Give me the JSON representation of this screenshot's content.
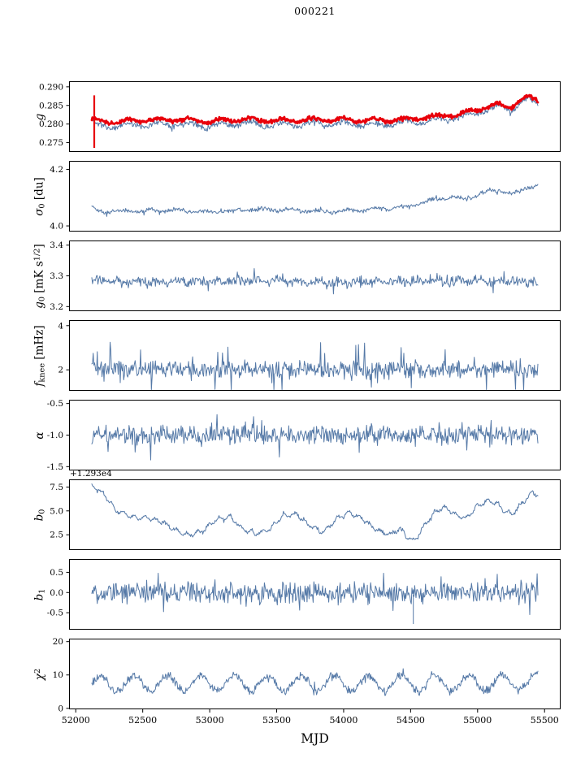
{
  "chart_data": {
    "type": "line",
    "title": "000221",
    "xlabel": "MJD",
    "xlim": [
      51950,
      55620
    ],
    "x_data_range": [
      52120,
      55450
    ],
    "x_ticks": [
      {
        "value": 52000,
        "label": "52000"
      },
      {
        "value": 52500,
        "label": "52500"
      },
      {
        "value": 53000,
        "label": "53000"
      },
      {
        "value": 53500,
        "label": "53500"
      },
      {
        "value": 54000,
        "label": "54000"
      },
      {
        "value": 54500,
        "label": "54500"
      },
      {
        "value": 55000,
        "label": "55000"
      },
      {
        "value": 55500,
        "label": "55500"
      }
    ],
    "colors": {
      "line": "#5579A7",
      "highlight": "#E8000B",
      "axis": "#000000"
    },
    "panels": [
      {
        "id": "g",
        "ylabel_text": "g",
        "ylabel_parts": [
          {
            "t": "g",
            "s": "it"
          }
        ],
        "ylim": [
          0.2725,
          0.2915
        ],
        "yticks": [
          {
            "value": 0.275,
            "label": "0.275"
          },
          {
            "value": 0.28,
            "label": "0.280"
          },
          {
            "value": 0.285,
            "label": "0.285"
          },
          {
            "value": 0.29,
            "label": "0.290"
          }
        ],
        "series": [
          {
            "name": "g-blue",
            "color": "#5579A7",
            "width": 1,
            "seed": 11,
            "n": 680,
            "noise": 0.0005,
            "spike_noise": {
              "prob": 0.05,
              "amp": 0.0011
            },
            "sine": {
              "amp": 0.0006,
              "period": 230,
              "phase": 0.5
            },
            "keypoints": [
              [
                52120,
                0.2812
              ],
              [
                52160,
                0.2795
              ],
              [
                52250,
                0.2794
              ],
              [
                52500,
                0.2799
              ],
              [
                52750,
                0.2801
              ],
              [
                53000,
                0.2795
              ],
              [
                53250,
                0.2802
              ],
              [
                53500,
                0.2797
              ],
              [
                53750,
                0.28
              ],
              [
                54000,
                0.2801
              ],
              [
                54250,
                0.2797
              ],
              [
                54500,
                0.2804
              ],
              [
                54700,
                0.281
              ],
              [
                54900,
                0.282
              ],
              [
                55050,
                0.2836
              ],
              [
                55150,
                0.2845
              ],
              [
                55250,
                0.284
              ],
              [
                55330,
                0.2858
              ],
              [
                55380,
                0.2866
              ],
              [
                55450,
                0.2852
              ]
            ]
          },
          {
            "name": "g-red",
            "color": "#E8000B",
            "width": 2.8,
            "seed": 12,
            "n": 680,
            "noise": 0.00035,
            "spike_noise": {
              "prob": 0.03,
              "amp": 0.0006
            },
            "sine": {
              "amp": 0.0005,
              "period": 230,
              "phase": 0.5
            },
            "keypoints": [
              [
                52120,
                0.2812
              ],
              [
                52250,
                0.2806
              ],
              [
                52500,
                0.281
              ],
              [
                52750,
                0.2812
              ],
              [
                53000,
                0.2807
              ],
              [
                53250,
                0.2813
              ],
              [
                53500,
                0.2809
              ],
              [
                53750,
                0.2811
              ],
              [
                54000,
                0.2812
              ],
              [
                54250,
                0.2809
              ],
              [
                54500,
                0.2815
              ],
              [
                54700,
                0.282
              ],
              [
                54900,
                0.2829
              ],
              [
                55050,
                0.2845
              ],
              [
                55150,
                0.2852
              ],
              [
                55250,
                0.2848
              ],
              [
                55330,
                0.2866
              ],
              [
                55380,
                0.2872
              ],
              [
                55450,
                0.2862
              ]
            ]
          }
        ],
        "segments": [
          {
            "x": 52138,
            "y0": 0.2736,
            "y1": 0.2877,
            "color": "#E8000B",
            "width": 2.2
          }
        ]
      },
      {
        "id": "sigma0",
        "ylabel_text": "sigma_0 [du]",
        "ylabel_parts": [
          {
            "t": "σ",
            "s": "it"
          },
          {
            "t": "0",
            "s": "sub"
          },
          {
            "t": " [du]",
            "s": "u"
          }
        ],
        "ylim": [
          3.98,
          4.23
        ],
        "yticks": [
          {
            "value": 4.0,
            "label": "4.0"
          },
          {
            "value": 4.2,
            "label": "4.2"
          }
        ],
        "series": [
          {
            "name": "sigma0-line",
            "color": "#5579A7",
            "width": 1,
            "seed": 21,
            "n": 660,
            "noise": 0.005,
            "spike_noise": {
              "prob": 0.05,
              "amp": 0.012
            },
            "sine": {
              "amp": 0.004,
              "period": 210,
              "phase": 1.2
            },
            "keypoints": [
              [
                52120,
                4.068
              ],
              [
                52160,
                4.052
              ],
              [
                52400,
                4.051
              ],
              [
                52700,
                4.057
              ],
              [
                53000,
                4.049
              ],
              [
                53300,
                4.058
              ],
              [
                53600,
                4.056
              ],
              [
                53900,
                4.05
              ],
              [
                54200,
                4.058
              ],
              [
                54450,
                4.066
              ],
              [
                54600,
                4.085
              ],
              [
                54750,
                4.1
              ],
              [
                54900,
                4.096
              ],
              [
                55050,
                4.118
              ],
              [
                55150,
                4.127
              ],
              [
                55250,
                4.113
              ],
              [
                55350,
                4.13
              ],
              [
                55450,
                4.148
              ]
            ]
          }
        ],
        "segments": []
      },
      {
        "id": "g0",
        "ylabel_text": "g_0 [mK s^1/2]",
        "ylabel_parts": [
          {
            "t": "g",
            "s": "it"
          },
          {
            "t": "0",
            "s": "sub"
          },
          {
            "t": " [mK s",
            "s": "u"
          },
          {
            "t": "1/2",
            "s": "sup"
          },
          {
            "t": "]",
            "s": "u"
          }
        ],
        "ylim": [
          3.185,
          3.415
        ],
        "yticks": [
          {
            "value": 3.2,
            "label": "3.2"
          },
          {
            "value": 3.3,
            "label": "3.3"
          },
          {
            "value": 3.4,
            "label": "3.4"
          }
        ],
        "series": [
          {
            "name": "g0-line",
            "color": "#5579A7",
            "width": 1,
            "seed": 31,
            "n": 660,
            "noise": 0.011,
            "spike_noise": {
              "prob": 0.06,
              "amp": 0.028
            },
            "sine": {
              "amp": 0.005,
              "period": 150,
              "phase": 0
            },
            "keypoints": [
              [
                52120,
                3.284
              ],
              [
                52700,
                3.281
              ],
              [
                53400,
                3.283
              ],
              [
                54000,
                3.279
              ],
              [
                54700,
                3.282
              ],
              [
                55450,
                3.281
              ]
            ]
          }
        ],
        "segments": []
      },
      {
        "id": "fknee",
        "ylabel_text": "f_knee [mHz]",
        "ylabel_parts": [
          {
            "t": "f",
            "s": "it"
          },
          {
            "t": "knee",
            "s": "sub"
          },
          {
            "t": " [mHz]",
            "s": "u"
          }
        ],
        "ylim": [
          1.05,
          4.25
        ],
        "yticks": [
          {
            "value": 2,
            "label": "2"
          },
          {
            "value": 4,
            "label": "4"
          }
        ],
        "series": [
          {
            "name": "fknee-line",
            "color": "#5579A7",
            "width": 1,
            "seed": 41,
            "n": 660,
            "noise": 0.26,
            "spike_noise": {
              "prob": 0.1,
              "amp": 1.1
            },
            "sine": {
              "amp": 0.06,
              "period": 140,
              "phase": 0
            },
            "keypoints": [
              [
                52120,
                2.1
              ],
              [
                52400,
                2.05
              ],
              [
                53000,
                2.0
              ],
              [
                54000,
                2.02
              ],
              [
                55000,
                2.0
              ],
              [
                55450,
                2.0
              ]
            ]
          }
        ],
        "segments": []
      },
      {
        "id": "alpha",
        "ylabel_text": "alpha",
        "ylabel_parts": [
          {
            "t": "α",
            "s": "it"
          }
        ],
        "ylim": [
          -1.56,
          -0.44
        ],
        "yticks": [
          {
            "value": -1.5,
            "label": "-1.5"
          },
          {
            "value": -1.0,
            "label": "-1.0"
          },
          {
            "value": -0.5,
            "label": "-0.5"
          }
        ],
        "series": [
          {
            "name": "alpha-line",
            "color": "#5579A7",
            "width": 1,
            "seed": 51,
            "n": 660,
            "noise": 0.1,
            "spike_noise": {
              "prob": 0.08,
              "amp": 0.26
            },
            "sine": {
              "amp": 0.02,
              "period": 120,
              "phase": 0
            },
            "keypoints": [
              [
                52120,
                -1.0
              ],
              [
                55450,
                -1.0
              ]
            ]
          }
        ],
        "segments": []
      },
      {
        "id": "b0",
        "ylabel_text": "b_0",
        "ylabel_parts": [
          {
            "t": "b",
            "s": "it"
          },
          {
            "t": "0",
            "s": "sub"
          }
        ],
        "offset_text": "+1.293e4",
        "ylim": [
          0.9,
          8.3
        ],
        "yticks": [
          {
            "value": 2.5,
            "label": "2.5"
          },
          {
            "value": 5.0,
            "label": "5.0"
          },
          {
            "value": 7.5,
            "label": "7.5"
          }
        ],
        "series": [
          {
            "name": "b0-line",
            "color": "#5579A7",
            "width": 1,
            "seed": 61,
            "n": 660,
            "noise": 0.13,
            "spike_noise": {
              "prob": 0.04,
              "amp": 0.3
            },
            "sine": {
              "amp": 0.18,
              "period": 80,
              "phase": 2
            },
            "keypoints": [
              [
                52120,
                7.6
              ],
              [
                52200,
                6.9
              ],
              [
                52300,
                5.1
              ],
              [
                52420,
                4.3
              ],
              [
                52550,
                4.25
              ],
              [
                52650,
                3.8
              ],
              [
                52750,
                2.9
              ],
              [
                52850,
                2.45
              ],
              [
                52950,
                2.9
              ],
              [
                53050,
                4.1
              ],
              [
                53150,
                4.35
              ],
              [
                53250,
                3.1
              ],
              [
                53350,
                2.6
              ],
              [
                53450,
                3.1
              ],
              [
                53550,
                4.5
              ],
              [
                53650,
                4.7
              ],
              [
                53750,
                3.4
              ],
              [
                53850,
                2.75
              ],
              [
                53950,
                4.2
              ],
              [
                54050,
                4.8
              ],
              [
                54150,
                4.1
              ],
              [
                54250,
                2.95
              ],
              [
                54350,
                2.5
              ],
              [
                54420,
                3.2
              ],
              [
                54480,
                2.2
              ],
              [
                54530,
                1.85
              ],
              [
                54600,
                3.4
              ],
              [
                54680,
                4.9
              ],
              [
                54760,
                5.35
              ],
              [
                54840,
                4.55
              ],
              [
                54920,
                4.3
              ],
              [
                55000,
                5.5
              ],
              [
                55080,
                6.05
              ],
              [
                55140,
                5.8
              ],
              [
                55200,
                5.0
              ],
              [
                55260,
                4.7
              ],
              [
                55320,
                5.6
              ],
              [
                55370,
                6.3
              ],
              [
                55410,
                7.0
              ],
              [
                55450,
                6.6
              ]
            ]
          }
        ],
        "segments": []
      },
      {
        "id": "b1",
        "ylabel_text": "b_1",
        "ylabel_parts": [
          {
            "t": "b",
            "s": "it"
          },
          {
            "t": "1",
            "s": "sub"
          }
        ],
        "ylim": [
          -0.92,
          0.83
        ],
        "yticks": [
          {
            "value": -0.5,
            "label": "-0.5"
          },
          {
            "value": 0.0,
            "label": "0.0"
          },
          {
            "value": 0.5,
            "label": "0.5"
          }
        ],
        "series": [
          {
            "name": "b1-line",
            "color": "#5579A7",
            "width": 1,
            "seed": 71,
            "n": 660,
            "noise": 0.17,
            "spike_noise": {
              "prob": 0.09,
              "amp": 0.32
            },
            "sine": {
              "amp": 0.02,
              "period": 100,
              "phase": 0
            },
            "keypoints": [
              [
                52120,
                0.0
              ],
              [
                55450,
                0.0
              ]
            ]
          }
        ],
        "segments": [
          {
            "x": 54520,
            "y0": -0.78,
            "y1": -0.05,
            "color": "#5579A7",
            "width": 1
          }
        ]
      },
      {
        "id": "chi2",
        "ylabel_text": "chi^2",
        "ylabel_parts": [
          {
            "t": "χ",
            "s": "it"
          },
          {
            "t": "2",
            "s": "sup"
          }
        ],
        "ylim": [
          -0.3,
          20.9
        ],
        "yticks": [
          {
            "value": 0,
            "label": "0"
          },
          {
            "value": 10,
            "label": "10"
          },
          {
            "value": 20,
            "label": "20"
          }
        ],
        "series": [
          {
            "name": "chi2-line",
            "color": "#5579A7",
            "width": 1,
            "seed": 81,
            "n": 660,
            "noise": 0.8,
            "spike_noise": {
              "prob": 0.05,
              "amp": 1.6
            },
            "sine": {
              "amp": 2.4,
              "period": 250,
              "phase": 0
            },
            "keypoints": [
              [
                52120,
                7.3
              ],
              [
                53000,
                7.6
              ],
              [
                54000,
                7.4
              ],
              [
                55000,
                7.6
              ],
              [
                55450,
                7.8
              ]
            ]
          }
        ],
        "segments": []
      }
    ]
  }
}
